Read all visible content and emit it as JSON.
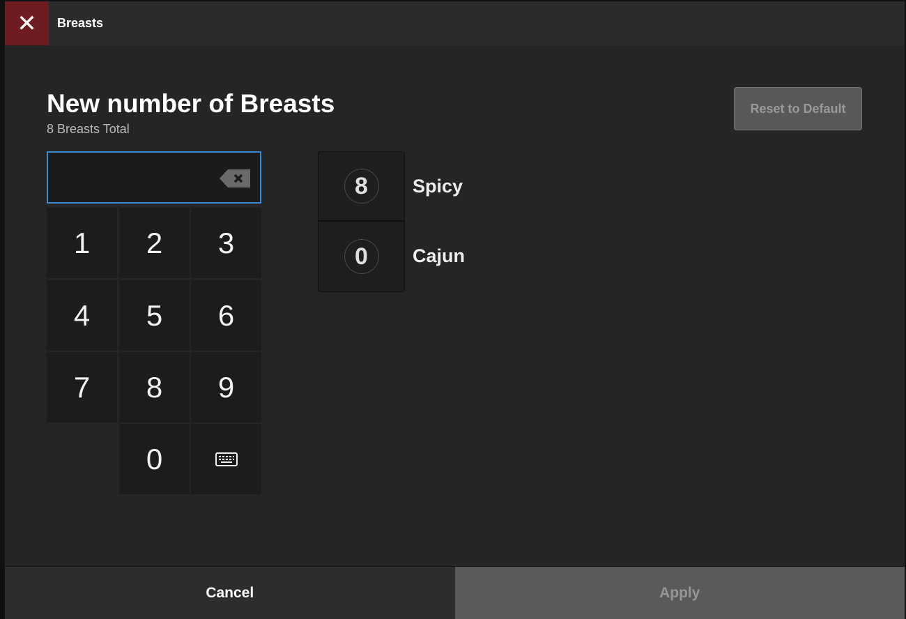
{
  "header": {
    "title": "Breasts",
    "close_icon": "close-icon",
    "close_color": "#6e1c22"
  },
  "main": {
    "title": "New number of Breasts",
    "subtitle": "8 Breasts Total",
    "reset_label": "Reset to Default",
    "input": {
      "value": "",
      "backspace_icon": "backspace-icon"
    },
    "keypad": [
      "1",
      "2",
      "3",
      "4",
      "5",
      "6",
      "7",
      "8",
      "9",
      "0"
    ],
    "keyboard_icon": "keyboard-icon",
    "flavors": [
      {
        "label": "Spicy",
        "count": "8"
      },
      {
        "label": "Cajun",
        "count": "0"
      }
    ]
  },
  "footer": {
    "cancel_label": "Cancel",
    "apply_label": "Apply"
  },
  "colors": {
    "accent": "#3a8ad0"
  }
}
